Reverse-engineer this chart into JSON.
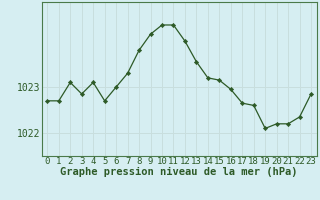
{
  "x": [
    0,
    1,
    2,
    3,
    4,
    5,
    6,
    7,
    8,
    9,
    10,
    11,
    12,
    13,
    14,
    15,
    16,
    17,
    18,
    19,
    20,
    21,
    22,
    23
  ],
  "y": [
    1022.7,
    1022.7,
    1023.1,
    1022.85,
    1023.1,
    1022.7,
    1023.0,
    1023.3,
    1023.8,
    1024.15,
    1024.35,
    1024.35,
    1024.0,
    1023.55,
    1023.2,
    1023.15,
    1022.95,
    1022.65,
    1022.6,
    1022.1,
    1022.2,
    1022.2,
    1022.35,
    1022.85
  ],
  "bg_color": "#d6eef2",
  "line_color": "#2d5a27",
  "marker_color": "#2d5a27",
  "grid_color": "#c8dede",
  "xlabel": "Graphe pression niveau de la mer (hPa)",
  "xlim": [
    -0.5,
    23.5
  ],
  "ylim": [
    1021.5,
    1024.85
  ],
  "tick_labels": [
    "0",
    "1",
    "2",
    "3",
    "4",
    "5",
    "6",
    "7",
    "8",
    "9",
    "10",
    "11",
    "12",
    "13",
    "14",
    "15",
    "16",
    "17",
    "18",
    "19",
    "20",
    "21",
    "22",
    "23"
  ],
  "ytick_positions": [
    1022,
    1023
  ],
  "border_color": "#4a7a4a",
  "xlabel_color": "#2d5a27",
  "xlabel_fontsize": 7.5,
  "tick_fontsize": 6.5,
  "ytick_fontsize": 7.0
}
